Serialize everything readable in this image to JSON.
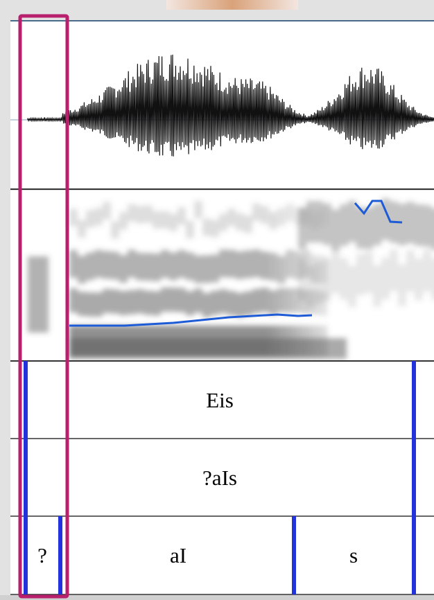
{
  "tiers": [
    [
      "Eis"
    ],
    [
      "?aIs"
    ],
    [
      "?",
      "aI",
      "s"
    ]
  ]
}
